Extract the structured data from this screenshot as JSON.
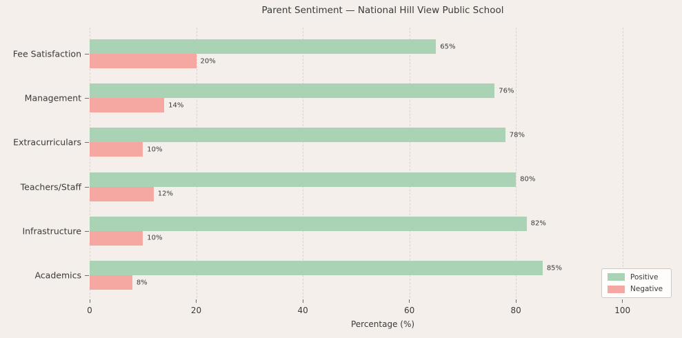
{
  "chart_data": {
    "type": "bar",
    "orientation": "horizontal",
    "title": "Parent Sentiment — National Hill View Public School",
    "xlabel": "Percentage (%)",
    "categories": [
      "Fee Satisfaction",
      "Management",
      "Extracurriculars",
      "Teachers/Staff",
      "Infrastructure",
      "Academics"
    ],
    "series": [
      {
        "name": "Positive",
        "color": "#a9d3b4",
        "values": [
          65,
          76,
          78,
          80,
          82,
          85
        ]
      },
      {
        "name": "Negative",
        "color": "#f5a8a1",
        "values": [
          20,
          14,
          10,
          12,
          10,
          8
        ]
      }
    ],
    "value_label_format": "{v}%",
    "value_labels": {
      "Positive": [
        "65%",
        "76%",
        "78%",
        "80%",
        "82%",
        "85%"
      ],
      "Negative": [
        "20%",
        "14%",
        "10%",
        "12%",
        "10%",
        "8%"
      ]
    },
    "xticks": [
      0,
      20,
      40,
      60,
      80,
      100
    ],
    "xlim": [
      0,
      110
    ],
    "grid": "vertical-dashed",
    "legend_position": "lower-right",
    "colors": {
      "background": "#f4efea",
      "grid": "#d8d3ce",
      "text": "#3a3a3a",
      "tick": "#6b6b6b",
      "legend_background": "#fefdfc",
      "legend_border": "#c9c9c9"
    }
  }
}
